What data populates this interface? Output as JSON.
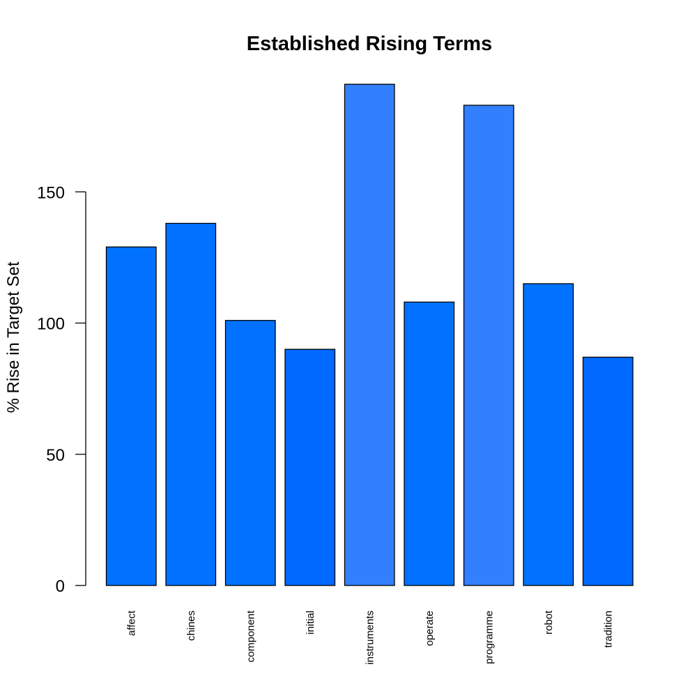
{
  "chart_data": {
    "type": "bar",
    "title": "Established Rising Terms",
    "xlabel": "",
    "ylabel": "% Rise in Target Set",
    "categories": [
      "affect",
      "chines",
      "component",
      "initial",
      "instruments",
      "operate",
      "programme",
      "robot",
      "tradition"
    ],
    "values": [
      129,
      138,
      101,
      90,
      191,
      108,
      183,
      115,
      87
    ],
    "bar_colors": [
      "#0072FF",
      "#0072FF",
      "#0072FF",
      "#0069FF",
      "#3380FF",
      "#0072FF",
      "#3380FF",
      "#0072FF",
      "#0069FF"
    ],
    "yticks": [
      0,
      50,
      100,
      150
    ],
    "ylim": [
      0,
      191
    ],
    "grid": false,
    "legend": "none"
  }
}
